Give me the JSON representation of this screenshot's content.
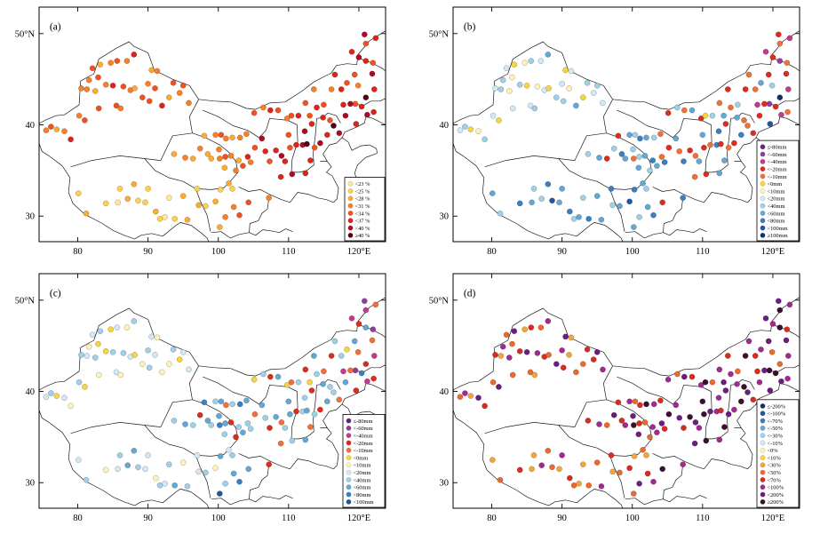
{
  "chart_data": {
    "type": "scatter",
    "title": "",
    "description": "Four-panel station scatter maps over China with longitude/latitude axes and per-panel class legends",
    "axes": {
      "x_ticks": [
        {
          "v": 80,
          "label": "80"
        },
        {
          "v": 90,
          "label": "90"
        },
        {
          "v": 100,
          "label": "100"
        },
        {
          "v": 110,
          "label": "110"
        },
        {
          "v": 120,
          "label": "120°E"
        }
      ],
      "y_ticks": [
        {
          "v": 30,
          "label": "30"
        },
        {
          "v": 40,
          "label": "40"
        },
        {
          "v": 50,
          "label": "50°N"
        }
      ],
      "lon_range": [
        74.5,
        123.8
      ],
      "lat_range": [
        27.2,
        52.9
      ],
      "grid": false
    },
    "stations": [
      [
        75.5,
        39.4
      ],
      [
        76.2,
        39.8
      ],
      [
        77.0,
        39.5
      ],
      [
        78.1,
        39.3
      ],
      [
        79.0,
        38.4
      ],
      [
        80.2,
        41.0
      ],
      [
        81.0,
        40.5
      ],
      [
        81.3,
        43.9
      ],
      [
        82.5,
        43.7
      ],
      [
        83.0,
        41.8
      ],
      [
        84.0,
        44.4
      ],
      [
        85.0,
        44.3
      ],
      [
        85.5,
        42.1
      ],
      [
        86.1,
        41.8
      ],
      [
        86.5,
        44.2
      ],
      [
        87.5,
        43.8
      ],
      [
        88.1,
        44.0
      ],
      [
        89.2,
        43.0
      ],
      [
        90.0,
        44.5
      ],
      [
        91.0,
        44.0
      ],
      [
        93.0,
        43.0
      ],
      [
        94.5,
        43.5
      ],
      [
        95.0,
        44.3
      ],
      [
        88.0,
        47.7
      ],
      [
        87.0,
        47.0
      ],
      [
        85.6,
        47.0
      ],
      [
        84.7,
        46.8
      ],
      [
        83.2,
        46.6
      ],
      [
        82.1,
        46.2
      ],
      [
        81.6,
        44.9
      ],
      [
        80.5,
        44.0
      ],
      [
        82.9,
        45.2
      ],
      [
        90.5,
        46.0
      ],
      [
        91.3,
        45.9
      ],
      [
        93.6,
        44.6
      ],
      [
        95.8,
        42.4
      ],
      [
        92.0,
        42.1
      ],
      [
        90.2,
        42.6
      ],
      [
        80.1,
        32.5
      ],
      [
        81.2,
        30.3
      ],
      [
        84.0,
        31.4
      ],
      [
        85.7,
        31.5
      ],
      [
        87.1,
        31.9
      ],
      [
        88.6,
        31.7
      ],
      [
        89.6,
        31.5
      ],
      [
        91.1,
        30.5
      ],
      [
        91.7,
        29.7
      ],
      [
        92.4,
        29.9
      ],
      [
        93.8,
        29.7
      ],
      [
        95.6,
        29.6
      ],
      [
        97.2,
        31.2
      ],
      [
        98.2,
        31.1
      ],
      [
        99.6,
        31.6
      ],
      [
        100.3,
        32.9
      ],
      [
        101.5,
        33.6
      ],
      [
        102.0,
        33.0
      ],
      [
        97.0,
        33.0
      ],
      [
        95.0,
        32.2
      ],
      [
        93.0,
        32.0
      ],
      [
        90.0,
        33.0
      ],
      [
        88.0,
        33.5
      ],
      [
        86.0,
        33.0
      ],
      [
        93.7,
        36.8
      ],
      [
        95.3,
        36.4
      ],
      [
        96.4,
        36.3
      ],
      [
        97.4,
        37.4
      ],
      [
        98.5,
        36.8
      ],
      [
        99.0,
        36.3
      ],
      [
        100.2,
        36.3
      ],
      [
        101.0,
        36.5
      ],
      [
        101.8,
        36.6
      ],
      [
        102.9,
        36.1
      ],
      [
        100.1,
        37.3
      ],
      [
        98.0,
        38.8
      ],
      [
        99.6,
        38.9
      ],
      [
        100.4,
        38.9
      ],
      [
        101.1,
        38.5
      ],
      [
        102.0,
        38.6
      ],
      [
        103.1,
        38.6
      ],
      [
        104.0,
        39.0
      ],
      [
        100.9,
        35.3
      ],
      [
        102.5,
        35.0
      ],
      [
        103.5,
        35.5
      ],
      [
        104.6,
        35.9
      ],
      [
        105.1,
        41.3
      ],
      [
        106.4,
        41.9
      ],
      [
        107.4,
        41.6
      ],
      [
        108.5,
        41.6
      ],
      [
        109.8,
        40.7
      ],
      [
        110.4,
        41.0
      ],
      [
        111.4,
        41.0
      ],
      [
        112.4,
        42.4
      ],
      [
        113.6,
        43.9
      ],
      [
        113.0,
        41.0
      ],
      [
        114.0,
        41.9
      ],
      [
        115.0,
        42.2
      ],
      [
        116.1,
        43.9
      ],
      [
        117.5,
        43.9
      ],
      [
        118.3,
        44.6
      ],
      [
        119.4,
        45.5
      ],
      [
        119.9,
        44.3
      ],
      [
        116.6,
        45.5
      ],
      [
        104.2,
        36.5
      ],
      [
        105.2,
        37.5
      ],
      [
        106.2,
        38.5
      ],
      [
        106.7,
        37.1
      ],
      [
        107.3,
        36.0
      ],
      [
        108.2,
        37.2
      ],
      [
        109.0,
        36.6
      ],
      [
        109.5,
        36.0
      ],
      [
        110.2,
        37.5
      ],
      [
        111.1,
        37.8
      ],
      [
        112.0,
        37.8
      ],
      [
        112.6,
        37.9
      ],
      [
        113.1,
        36.1
      ],
      [
        113.7,
        37.5
      ],
      [
        114.5,
        38.0
      ],
      [
        115.5,
        38.9
      ],
      [
        116.4,
        39.9
      ],
      [
        117.2,
        39.1
      ],
      [
        114.9,
        40.8
      ],
      [
        115.9,
        40.5
      ],
      [
        113.3,
        40.1
      ],
      [
        112.3,
        39.3
      ],
      [
        110.0,
        38.9
      ],
      [
        108.9,
        34.3
      ],
      [
        110.5,
        34.6
      ],
      [
        112.4,
        34.7
      ],
      [
        102.2,
        31.0
      ],
      [
        103.0,
        30.1
      ],
      [
        101.0,
        29.9
      ],
      [
        100.2,
        28.8
      ],
      [
        104.3,
        31.5
      ],
      [
        107.2,
        32.0
      ],
      [
        119.0,
        48.0
      ],
      [
        120.0,
        47.4
      ],
      [
        121.0,
        47.0
      ],
      [
        122.0,
        46.8
      ],
      [
        121.9,
        45.6
      ],
      [
        122.2,
        43.9
      ],
      [
        121.0,
        43.0
      ],
      [
        120.4,
        42.0
      ],
      [
        121.2,
        41.1
      ],
      [
        122.1,
        41.4
      ],
      [
        119.5,
        42.3
      ],
      [
        118.8,
        42.3
      ],
      [
        117.8,
        42.2
      ],
      [
        118.1,
        41.0
      ],
      [
        119.6,
        40.1
      ],
      [
        121.0,
        48.9
      ],
      [
        122.4,
        49.5
      ],
      [
        120.8,
        49.9
      ]
    ],
    "panels": [
      {
        "id": "a",
        "label": "(a)",
        "legend_labels": [
          "<23 %",
          "<25 %",
          "<28 %",
          "<31 %",
          "<34 %",
          "<37 %",
          "<40 %",
          "≥40 %"
        ],
        "legend_colors": [
          "#ffe79a",
          "#fdd04f",
          "#fbab32",
          "#f67f27",
          "#ef5220",
          "#da251c",
          "#ad0a25",
          "#54000f"
        ],
        "classes": [
          3,
          4,
          2,
          3,
          5,
          3,
          4,
          3,
          2,
          4,
          3,
          5,
          4,
          3,
          4,
          3,
          2,
          4,
          3,
          4,
          2,
          3,
          4,
          5,
          3,
          4,
          3,
          2,
          4,
          3,
          3,
          4,
          2,
          3,
          4,
          3,
          5,
          4,
          1,
          2,
          1,
          0,
          2,
          1,
          1,
          2,
          1,
          0,
          1,
          2,
          2,
          1,
          2,
          1,
          2,
          1,
          1,
          2,
          0,
          1,
          2,
          1,
          2,
          3,
          2,
          3,
          2,
          2,
          3,
          4,
          3,
          2,
          3,
          2,
          3,
          4,
          3,
          2,
          3,
          3,
          2,
          3,
          4,
          3,
          4,
          3,
          5,
          4,
          3,
          4,
          5,
          4,
          3,
          4,
          5,
          4,
          3,
          5,
          4,
          4,
          3,
          5,
          5,
          4,
          6,
          5,
          4,
          5,
          6,
          5,
          4,
          5,
          6,
          7,
          5,
          4,
          6,
          5,
          7,
          6,
          5,
          4,
          5,
          6,
          4,
          5,
          6,
          5,
          3,
          4,
          3,
          2,
          4,
          3,
          5,
          6,
          5,
          4,
          6,
          5,
          7,
          5,
          6,
          5,
          4,
          6,
          5,
          6,
          5,
          4,
          5,
          6
        ]
      },
      {
        "id": "b",
        "label": "(b)",
        "legend_labels": [
          "≤-80mm",
          "<-60mm",
          "<-40mm",
          "<-20mm",
          "<-10mm",
          "<0mm",
          "<10mm",
          "<20mm",
          "<40mm",
          "<60mm",
          "<80mm",
          "<100mm",
          "≥100mm"
        ],
        "legend_colors": [
          "#5b2a82",
          "#8f3f9a",
          "#c23a8c",
          "#dd2c1e",
          "#f0703a",
          "#f6d63c",
          "#fdf3b8",
          "#d2e9f5",
          "#9fd0e8",
          "#63a8d3",
          "#3a7fbf",
          "#2156a3",
          "#122f6e"
        ],
        "classes": [
          7,
          8,
          5,
          6,
          8,
          7,
          5,
          8,
          6,
          7,
          8,
          5,
          7,
          8,
          6,
          7,
          5,
          8,
          7,
          6,
          5,
          7,
          8,
          9,
          7,
          8,
          6,
          5,
          7,
          8,
          7,
          6,
          5,
          7,
          8,
          7,
          9,
          8,
          9,
          8,
          10,
          9,
          8,
          11,
          9,
          10,
          8,
          9,
          10,
          9,
          8,
          9,
          11,
          10,
          9,
          8,
          10,
          9,
          8,
          9,
          10,
          8,
          8,
          9,
          3,
          8,
          10,
          9,
          4,
          8,
          9,
          10,
          8,
          3,
          9,
          8,
          10,
          9,
          8,
          4,
          9,
          8,
          9,
          10,
          3,
          8,
          4,
          9,
          3,
          5,
          8,
          4,
          3,
          9,
          4,
          8,
          3,
          4,
          9,
          3,
          8,
          4,
          4,
          3,
          9,
          4,
          10,
          3,
          4,
          9,
          3,
          4,
          10,
          3,
          9,
          4,
          3,
          10,
          4,
          3,
          9,
          4,
          3,
          10,
          9,
          4,
          3,
          9,
          9,
          10,
          8,
          9,
          3,
          10,
          2,
          3,
          1,
          4,
          3,
          2,
          12,
          3,
          2,
          4,
          1,
          3,
          2,
          3,
          11,
          4,
          2,
          3
        ]
      },
      {
        "id": "c",
        "label": "(c)",
        "legend_labels": [
          "≤-80mm",
          "<-60mm",
          "<-40mm",
          "<-20mm",
          "<-10mm",
          "<0mm",
          "<10mm",
          "<20mm",
          "<40mm",
          "<60mm",
          "<80mm",
          "<100mm"
        ],
        "legend_colors": [
          "#5b2a82",
          "#8f3f9a",
          "#c23a8c",
          "#dd2c1e",
          "#f0703a",
          "#f6d63c",
          "#fdf3b8",
          "#d2e9f5",
          "#9fd0e8",
          "#63a8d3",
          "#3a7fbf",
          "#2156a3"
        ],
        "classes": [
          7,
          8,
          5,
          7,
          6,
          8,
          5,
          7,
          8,
          6,
          5,
          8,
          7,
          6,
          8,
          7,
          5,
          6,
          8,
          7,
          6,
          5,
          7,
          8,
          6,
          7,
          5,
          8,
          7,
          6,
          8,
          5,
          7,
          6,
          8,
          7,
          6,
          8,
          7,
          8,
          6,
          7,
          9,
          8,
          7,
          6,
          8,
          7,
          9,
          8,
          7,
          8,
          6,
          9,
          7,
          8,
          7,
          6,
          8,
          7,
          9,
          8,
          8,
          9,
          8,
          3,
          9,
          8,
          10,
          9,
          3,
          8,
          9,
          10,
          8,
          9,
          4,
          8,
          10,
          9,
          8,
          3,
          9,
          8,
          5,
          8,
          3,
          9,
          5,
          4,
          8,
          3,
          9,
          5,
          8,
          4,
          3,
          8,
          5,
          9,
          4,
          8,
          8,
          4,
          9,
          8,
          3,
          9,
          4,
          8,
          9,
          3,
          8,
          9,
          4,
          8,
          3,
          9,
          8,
          4,
          9,
          8,
          3,
          8,
          9,
          4,
          8,
          9,
          9,
          10,
          8,
          11,
          9,
          3,
          2,
          3,
          9,
          1,
          4,
          2,
          3,
          10,
          2,
          3,
          1,
          4,
          2,
          9,
          3,
          2,
          4,
          1
        ]
      },
      {
        "id": "d",
        "label": "(d)",
        "legend_labels": [
          "≤-200%",
          "<-100%",
          "<-70%",
          "<-50%",
          "<-30%",
          "<-10%",
          "<0%",
          "<10%",
          "<30%",
          "<50%",
          "<70%",
          "<100%",
          "<200%",
          "≥200%"
        ],
        "legend_colors": [
          "#122f6e",
          "#2156a3",
          "#3a7fbf",
          "#63a8d3",
          "#9fd0e8",
          "#d2e9f5",
          "#fdf3b8",
          "#f6d63c",
          "#f2a53a",
          "#ec682c",
          "#d92b1f",
          "#a02a8f",
          "#6b1e7e",
          "#3c0f2e"
        ],
        "classes": [
          9,
          11,
          8,
          12,
          10,
          9,
          12,
          8,
          11,
          9,
          10,
          12,
          9,
          8,
          11,
          10,
          9,
          12,
          11,
          8,
          9,
          10,
          12,
          11,
          9,
          10,
          8,
          12,
          9,
          11,
          10,
          9,
          12,
          8,
          10,
          11,
          9,
          10,
          8,
          9,
          10,
          8,
          11,
          9,
          8,
          10,
          9,
          8,
          9,
          11,
          8,
          9,
          10,
          8,
          9,
          8,
          10,
          9,
          8,
          11,
          9,
          8,
          10,
          11,
          9,
          12,
          10,
          11,
          13,
          10,
          9,
          11,
          12,
          10,
          11,
          9,
          10,
          13,
          11,
          10,
          12,
          9,
          11,
          10,
          11,
          9,
          12,
          10,
          11,
          13,
          9,
          11,
          10,
          12,
          11,
          9,
          13,
          10,
          11,
          12,
          9,
          11,
          12,
          13,
          11,
          12,
          10,
          13,
          12,
          11,
          13,
          12,
          11,
          10,
          13,
          12,
          11,
          13,
          12,
          10,
          11,
          13,
          12,
          11,
          13,
          12,
          13,
          11,
          10,
          11,
          12,
          9,
          13,
          11,
          12,
          11,
          13,
          10,
          12,
          11,
          9,
          13,
          12,
          11,
          13,
          12,
          10,
          11,
          12,
          13,
          11,
          12
        ]
      }
    ]
  }
}
